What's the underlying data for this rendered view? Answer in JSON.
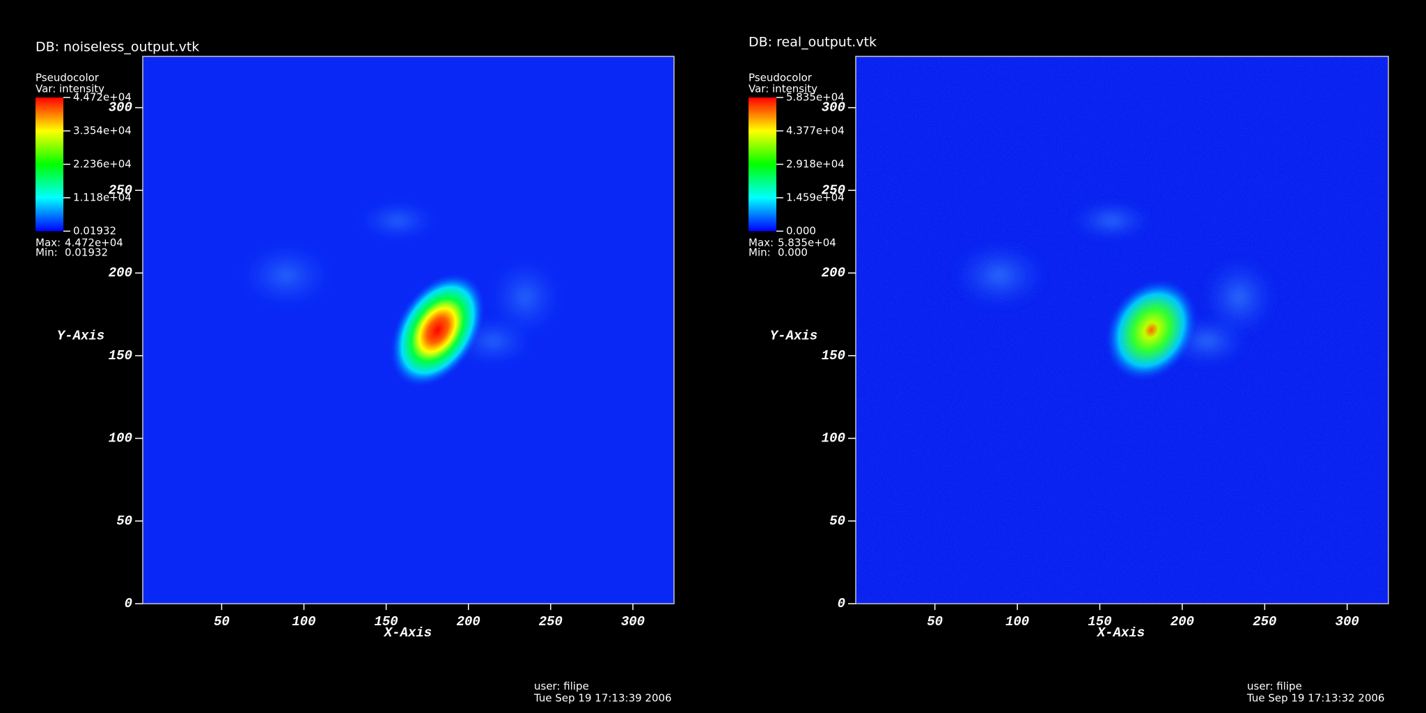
{
  "chart_data": [
    {
      "type": "heatmap",
      "title": "DB: noiseless_output.vtk",
      "plot_label": "Pseudocolor",
      "variable": "Var: intensity",
      "xlabel": "X-Axis",
      "ylabel": "Y-Axis",
      "xlim": [
        2,
        325
      ],
      "ylim": [
        0,
        331
      ],
      "xticks": [
        50,
        100,
        150,
        200,
        250,
        300
      ],
      "yticks": [
        0,
        50,
        100,
        150,
        200,
        250,
        300
      ],
      "clim": [
        0.01932,
        44720
      ],
      "cticks": [
        {
          "value": 44720,
          "label": "4.472e+04"
        },
        {
          "value": 33540,
          "label": "3.354e+04"
        },
        {
          "value": 22360,
          "label": "2.236e+04"
        },
        {
          "value": 11180,
          "label": "1.118e+04"
        },
        0.01932
      ],
      "max_label": "Max:",
      "max": {
        "value": 44720,
        "label": "4.472e+04"
      },
      "min_label": "Min:",
      "min": 0.01932,
      "user": "user: filipe",
      "date": "Tue Sep 19 17:13:39 2006"
    },
    {
      "type": "heatmap",
      "title": "DB: real_output.vtk",
      "plot_label": "Pseudocolor",
      "variable": "Var: intensity",
      "xlabel": "X-Axis",
      "ylabel": "Y-Axis",
      "xlim": [
        2,
        325
      ],
      "ylim": [
        0,
        331
      ],
      "xticks": [
        50,
        100,
        150,
        200,
        250,
        300
      ],
      "yticks": [
        0,
        50,
        100,
        150,
        200,
        250,
        300
      ],
      "clim": [
        0,
        58350
      ],
      "cticks": [
        {
          "value": 58350,
          "label": "5.835e+04"
        },
        {
          "value": 43770,
          "label": "4.377e+04"
        },
        {
          "value": 29180,
          "label": "2.918e+04"
        },
        {
          "value": 14590,
          "label": "1.459e+04"
        },
        {
          "value": 0,
          "label": "0.000"
        }
      ],
      "max_label": "Max:",
      "max": {
        "value": 58350,
        "label": "5.835e+04"
      },
      "min_label": "Min:",
      "min": {
        "value": 0,
        "label": "0.000"
      },
      "user": "user: filipe",
      "date": "Tue Sep 19 17:13:32 2006"
    }
  ]
}
